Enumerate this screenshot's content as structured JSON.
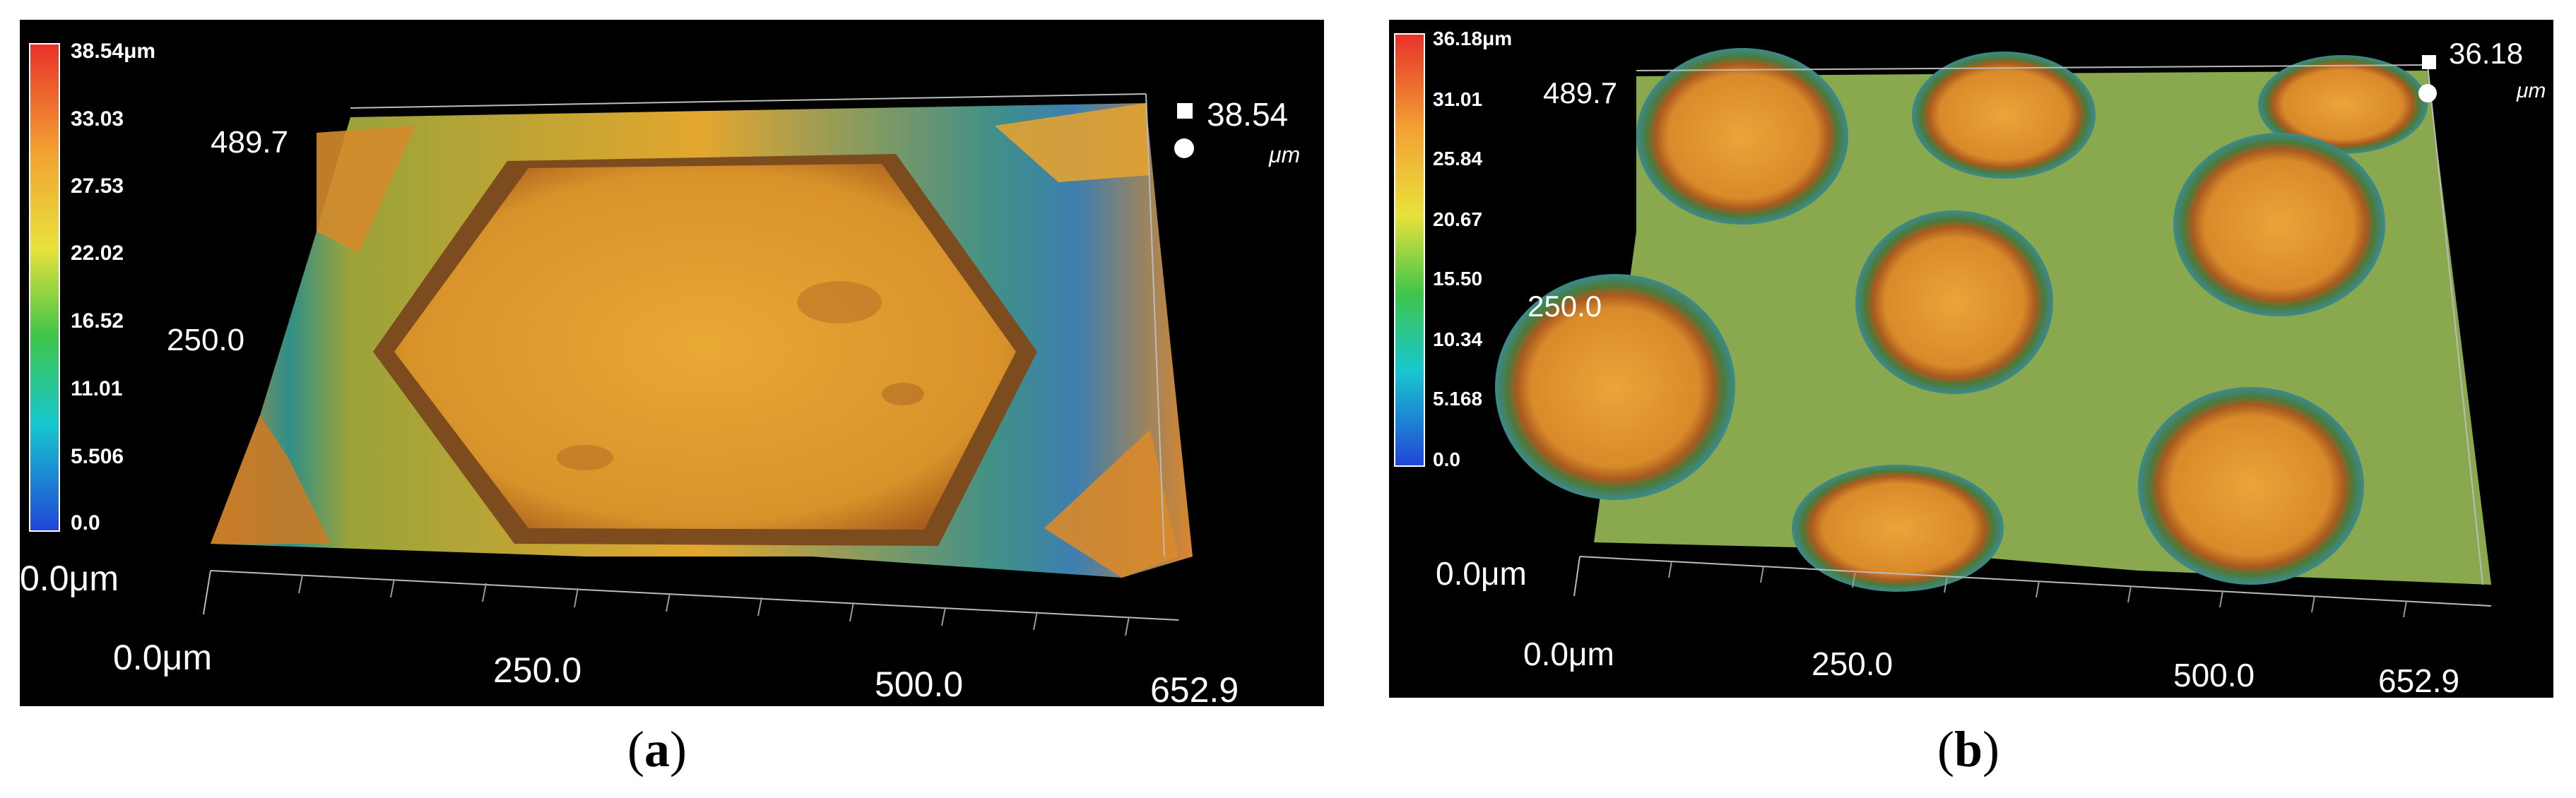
{
  "panels": [
    {
      "id": "a",
      "caption": "a",
      "colorbar_labels": [
        "38.54μm",
        "33.03",
        "27.53",
        "22.02",
        "16.52",
        "11.01",
        "5.506",
        "0.0"
      ],
      "z_max_value": "38.54",
      "z_unit": "μm",
      "y_labels": [
        "489.7",
        "250.0"
      ],
      "z_origin_label": "0.0μm",
      "x_labels": [
        "0.0μm",
        "250.0",
        "500.0",
        "652.9"
      ]
    },
    {
      "id": "b",
      "caption": "b",
      "colorbar_labels": [
        "36.18μm",
        "31.01",
        "25.84",
        "20.67",
        "15.50",
        "10.34",
        "5.168",
        "0.0"
      ],
      "z_max_value": "36.18",
      "z_unit": "μm",
      "y_labels": [
        "489.7",
        "250.0"
      ],
      "z_origin_label": "0.0μm",
      "x_labels": [
        "0.0μm",
        "250.0",
        "500.0",
        "652.9"
      ]
    }
  ],
  "colors": {
    "high": "#e8312a",
    "upper": "#f2a133",
    "mid": "#e9e23b",
    "green": "#3fc54a",
    "cyan": "#18c7cf",
    "low": "#2145d8"
  }
}
